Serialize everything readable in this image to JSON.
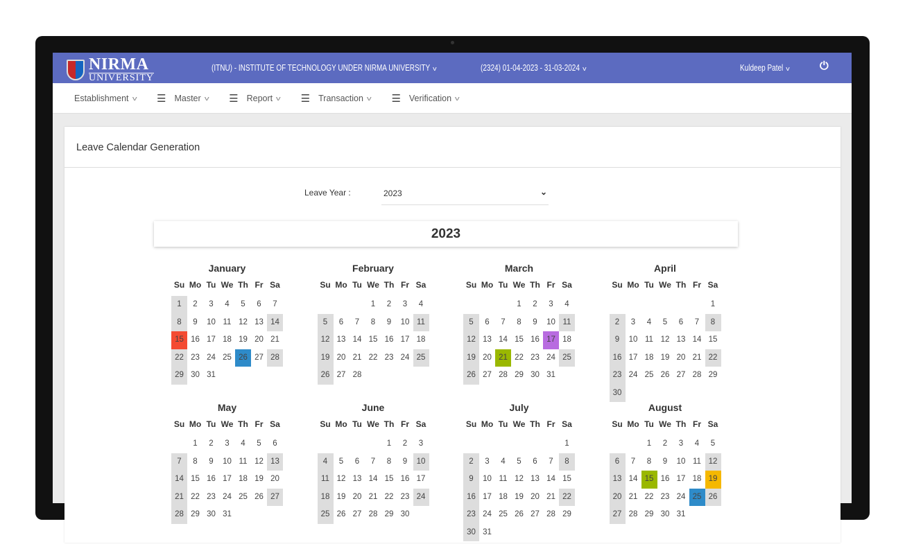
{
  "header": {
    "logo_text": [
      "NIRMA",
      "UNIVERSITY"
    ],
    "institute": "(ITNU) - INSTITUTE OF TECHNOLOGY UNDER NIRMA UNIVERSITY",
    "period": "(2324) 01-04-2023 - 31-03-2024",
    "user": "Kuldeep Patel",
    "color": "#5c6bc0"
  },
  "nav": [
    {
      "label": "Establishment",
      "icon": ""
    },
    {
      "label": "Master",
      "icon": "menu-icon"
    },
    {
      "label": "Report",
      "icon": "menu-icon"
    },
    {
      "label": "Transaction",
      "icon": "menu-icon"
    },
    {
      "label": "Verification",
      "icon": "menu-icon"
    }
  ],
  "page": {
    "title": "Leave Calendar Generation",
    "leave_year_label": "Leave Year :",
    "leave_year_value": "2023",
    "year_heading": "2023"
  },
  "calendar": {
    "dow": [
      "Su",
      "Mo",
      "Tu",
      "We",
      "Th",
      "Fr",
      "Sa"
    ],
    "shaded_rule": "sundays and 2nd/4th saturdays",
    "months": [
      {
        "name": "January",
        "start": 0,
        "days": 31
      },
      {
        "name": "February",
        "start": 3,
        "days": 28
      },
      {
        "name": "March",
        "start": 3,
        "days": 31
      },
      {
        "name": "April",
        "start": 6,
        "days": 30
      },
      {
        "name": "May",
        "start": 1,
        "days": 31
      },
      {
        "name": "June",
        "start": 4,
        "days": 30
      },
      {
        "name": "July",
        "start": 6,
        "days": 31
      },
      {
        "name": "August",
        "start": 2,
        "days": 31
      }
    ],
    "highlights": [
      {
        "month": "January",
        "day": 15,
        "color": "#f44b32"
      },
      {
        "month": "January",
        "day": 26,
        "color": "#2e8bc9"
      },
      {
        "month": "March",
        "day": 17,
        "color": "#b86ce0"
      },
      {
        "month": "March",
        "day": 21,
        "color": "#9ab800"
      },
      {
        "month": "August",
        "day": 15,
        "color": "#9ab800"
      },
      {
        "month": "August",
        "day": 19,
        "color": "#f5b800"
      },
      {
        "month": "August",
        "day": 25,
        "color": "#2e8bc9"
      }
    ]
  }
}
